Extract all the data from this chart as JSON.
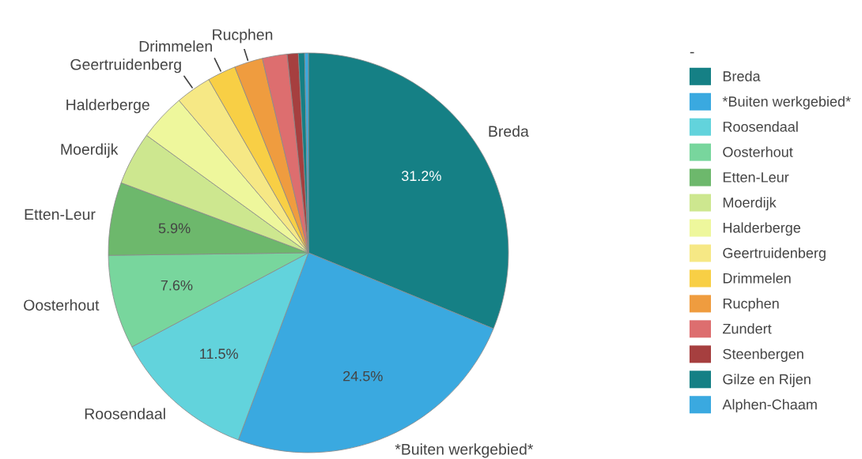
{
  "chart_data": {
    "type": "pie",
    "legend_title": "-",
    "legend": "right",
    "categories": [
      "Breda",
      "*Buiten werkgebied*",
      "Roosendaal",
      "Oosterhout",
      "Etten-Leur",
      "Moerdijk",
      "Halderberge",
      "Geertruidenberg",
      "Drimmelen",
      "Rucphen",
      "Zundert",
      "Steenbergen",
      "Gilze en Rijen",
      "Alphen-Chaam"
    ],
    "values": [
      31.2,
      24.5,
      11.5,
      7.6,
      5.9,
      4.3,
      3.8,
      2.9,
      2.3,
      2.3,
      2.0,
      0.9,
      0.5,
      0.3
    ],
    "colors": [
      "#158085",
      "#3aa9e0",
      "#62d3dc",
      "#78d69d",
      "#6db86c",
      "#cde78f",
      "#eef79c",
      "#f6e885",
      "#f8cf45",
      "#ef9c3f",
      "#dd6e6f",
      "#a63f3f",
      "#158085",
      "#3aa9e0"
    ],
    "value_labels": [
      "31.2%",
      "24.5%",
      "11.5%",
      "7.6%",
      "5.9%",
      null,
      null,
      null,
      null,
      null,
      null,
      null,
      null,
      null
    ]
  }
}
